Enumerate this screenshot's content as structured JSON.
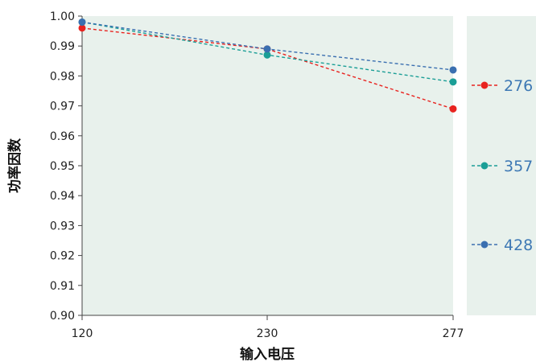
{
  "chart_data": {
    "type": "line",
    "xlabel": "输入电压",
    "ylabel": "功率因数",
    "x": [
      120,
      230,
      277
    ],
    "x_tick_labels": [
      "120",
      "230",
      "277"
    ],
    "ylim": [
      0.9,
      1.0
    ],
    "y_ticks": [
      0.9,
      0.91,
      0.92,
      0.93,
      0.94,
      0.95,
      0.96,
      0.97,
      0.98,
      0.99,
      1.0
    ],
    "y_tick_labels": [
      "0.90",
      "0.91",
      "0.92",
      "0.93",
      "0.94",
      "0.95",
      "0.96",
      "0.97",
      "0.98",
      "0.99",
      "1.00"
    ],
    "grid": false,
    "legend_position": "right",
    "series": [
      {
        "name": "276",
        "color": "#e8231f",
        "values": [
          0.996,
          0.989,
          0.969
        ]
      },
      {
        "name": "357",
        "color": "#1a9e96",
        "values": [
          0.998,
          0.987,
          0.978
        ]
      },
      {
        "name": "428",
        "color": "#3a6fb0",
        "values": [
          0.998,
          0.989,
          0.982
        ]
      }
    ]
  }
}
